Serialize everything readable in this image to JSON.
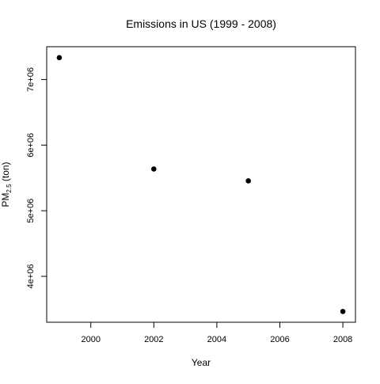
{
  "chart_data": {
    "type": "scatter",
    "title": "Emissions in US (1999 - 2008)",
    "xlabel": "Year",
    "ylabel": {
      "main": "PM",
      "subscript": "2.5",
      "unit": " (ton)"
    },
    "x": [
      1999,
      2002,
      2005,
      2008
    ],
    "y": [
      7332967,
      5635780,
      5454703,
      3464206
    ],
    "xlim": [
      1998.6,
      2008.4
    ],
    "ylim": [
      3300000,
      7500000
    ],
    "x_ticks": [
      2000,
      2002,
      2004,
      2006,
      2008
    ],
    "x_tick_labels": [
      "2000",
      "2002",
      "2004",
      "2006",
      "2008"
    ],
    "y_ticks": [
      4000000,
      5000000,
      6000000,
      7000000
    ],
    "y_tick_labels": [
      "4e+06",
      "5e+06",
      "6e+06",
      "7e+06"
    ],
    "grid": false,
    "point_color": "#000000"
  }
}
